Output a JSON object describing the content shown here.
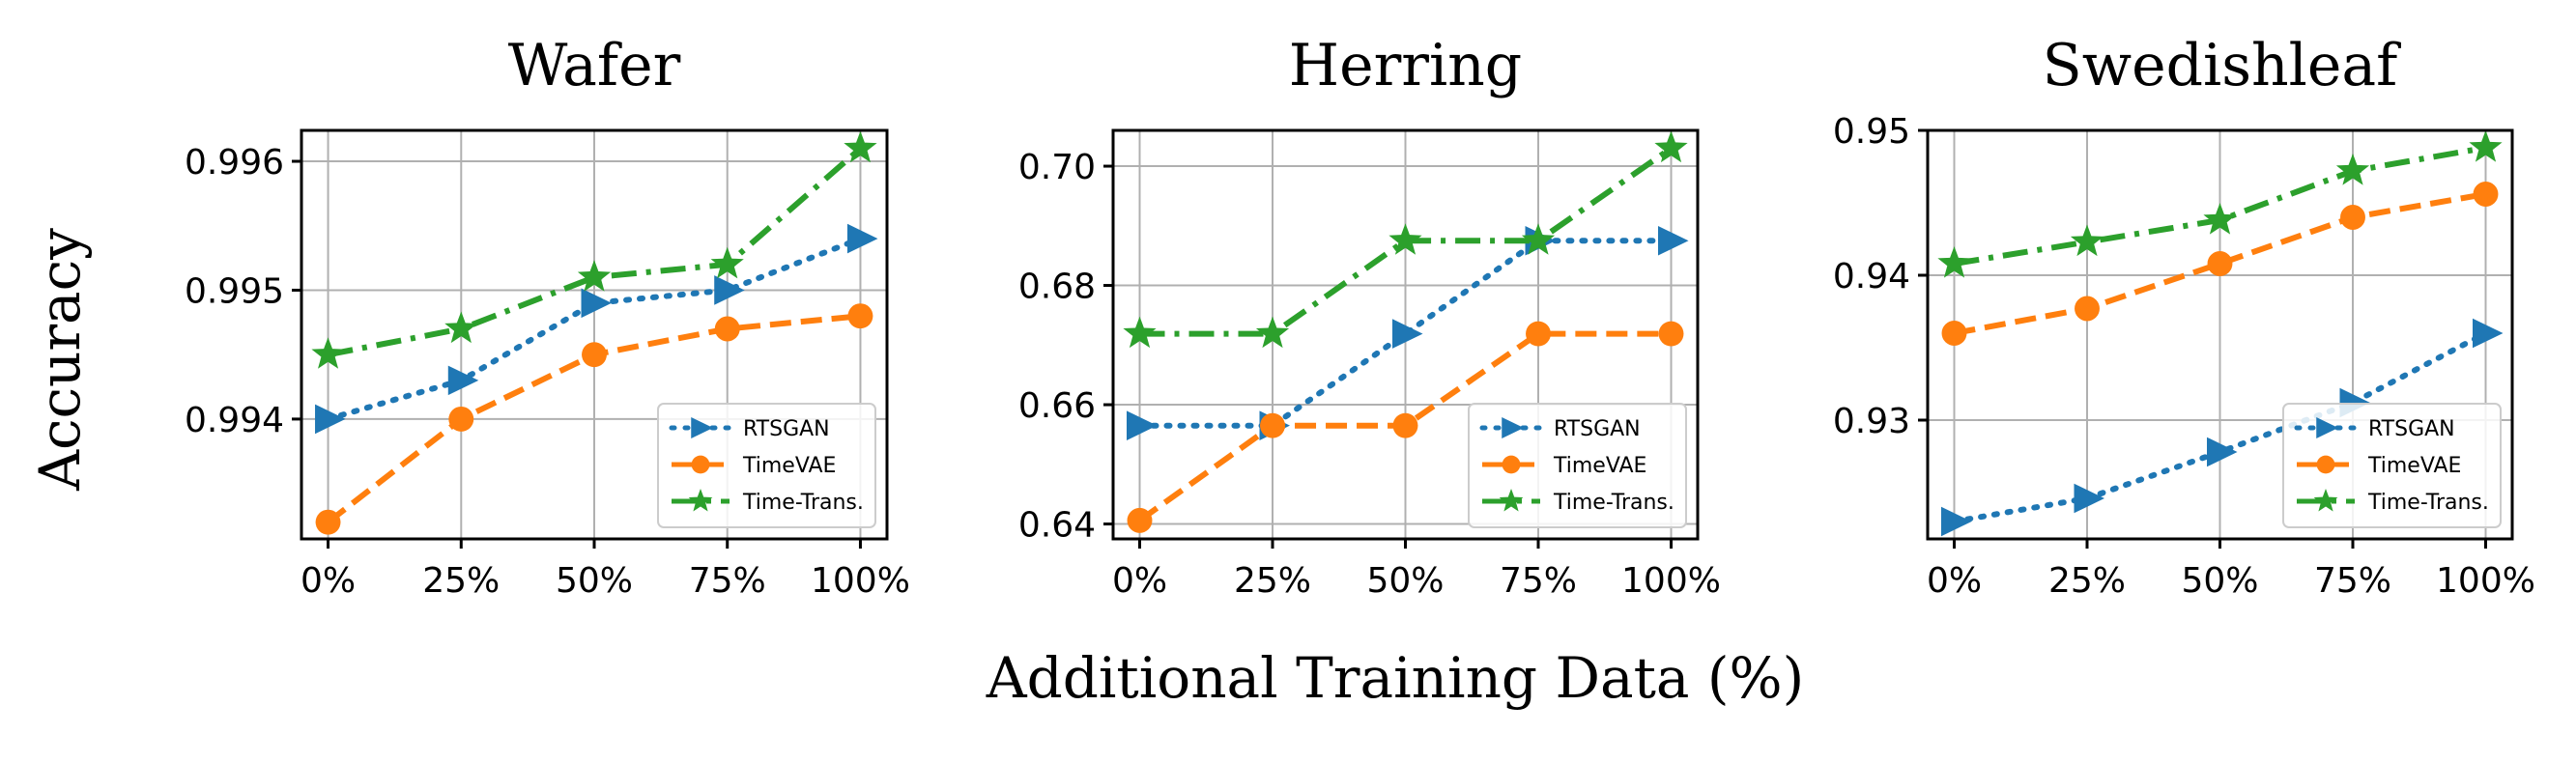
{
  "figure": {
    "ylabel": "Accuracy",
    "xlabel": "Additional Training Data (%)"
  },
  "colors": {
    "RTSGAN": "#1f77b4",
    "TimeVAE": "#ff7f0e",
    "Time-Trans.": "#2ca02c"
  },
  "chart_data": [
    {
      "type": "line",
      "title": "Wafer",
      "categories": [
        "0%",
        "25%",
        "50%",
        "75%",
        "100%"
      ],
      "x": [
        0,
        25,
        50,
        75,
        100
      ],
      "ylim": [
        0.99307,
        0.99624
      ],
      "yticks": [
        0.994,
        0.995,
        0.996
      ],
      "ytick_labels": [
        "0.994",
        "0.995",
        "0.996"
      ],
      "grid": true,
      "legend": "lower-right",
      "series": [
        {
          "name": "RTSGAN",
          "values": [
            0.994,
            0.9943,
            0.9949,
            0.995,
            0.9954
          ]
        },
        {
          "name": "TimeVAE",
          "values": [
            0.9932,
            0.994,
            0.9945,
            0.9947,
            0.9948
          ]
        },
        {
          "name": "Time-Trans.",
          "values": [
            0.9945,
            0.9947,
            0.9951,
            0.9952,
            0.9961
          ]
        }
      ]
    },
    {
      "type": "line",
      "title": "Herring",
      "categories": [
        "0%",
        "25%",
        "50%",
        "75%",
        "100%"
      ],
      "x": [
        0,
        25,
        50,
        75,
        100
      ],
      "ylim": [
        0.6375,
        0.706
      ],
      "yticks": [
        0.64,
        0.66,
        0.68,
        0.7
      ],
      "ytick_labels": [
        "0.64",
        "0.66",
        "0.68",
        "0.70"
      ],
      "grid": true,
      "legend": "lower-right",
      "series": [
        {
          "name": "RTSGAN",
          "values": [
            0.6565,
            0.6565,
            0.6719,
            0.6875,
            0.6875
          ]
        },
        {
          "name": "TimeVAE",
          "values": [
            0.6406,
            0.6565,
            0.6565,
            0.6719,
            0.6719
          ]
        },
        {
          "name": "Time-Trans.",
          "values": [
            0.6719,
            0.6719,
            0.6875,
            0.6875,
            0.703
          ]
        }
      ]
    },
    {
      "type": "line",
      "title": "Swedishleaf",
      "categories": [
        "0%",
        "25%",
        "50%",
        "75%",
        "100%"
      ],
      "x": [
        0,
        25,
        50,
        75,
        100
      ],
      "ylim": [
        0.9218,
        0.95
      ],
      "yticks": [
        0.93,
        0.94,
        0.95
      ],
      "ytick_labels": [
        "0.93",
        "0.94",
        "0.95"
      ],
      "grid": true,
      "legend": "lower-right",
      "series": [
        {
          "name": "RTSGAN",
          "values": [
            0.923,
            0.9246,
            0.9278,
            0.9312,
            0.936
          ]
        },
        {
          "name": "TimeVAE",
          "values": [
            0.936,
            0.9377,
            0.9408,
            0.944,
            0.9456
          ]
        },
        {
          "name": "Time-Trans.",
          "values": [
            0.9408,
            0.9423,
            0.9438,
            0.9472,
            0.9488
          ]
        }
      ]
    }
  ]
}
